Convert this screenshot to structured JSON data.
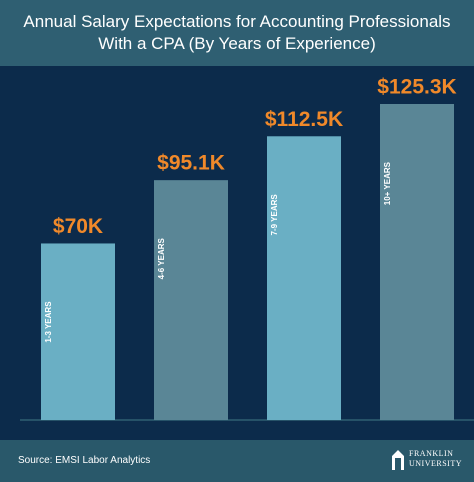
{
  "chart_data": {
    "type": "bar",
    "title": "Annual Salary Expectations for Accounting Professionals With a CPA (By Years of Experience)",
    "categories": [
      "1-3 YEARS",
      "4-6 YEARS",
      "7-9 YEARS",
      "10+ YEARS"
    ],
    "values": [
      70,
      95.1,
      112.5,
      125.3
    ],
    "value_labels": [
      "$70K",
      "$95.1K",
      "$112.5K",
      "$125.3K"
    ],
    "colors": [
      "#6aafc4",
      "#5a8696",
      "#6aafc4",
      "#5a8696"
    ],
    "label_color": "#f0892a"
  },
  "footer": {
    "source": "Source: EMSI Labor Analytics",
    "logo": {
      "line1": "FRANKLIN",
      "line2": "UNIVERSITY"
    }
  }
}
